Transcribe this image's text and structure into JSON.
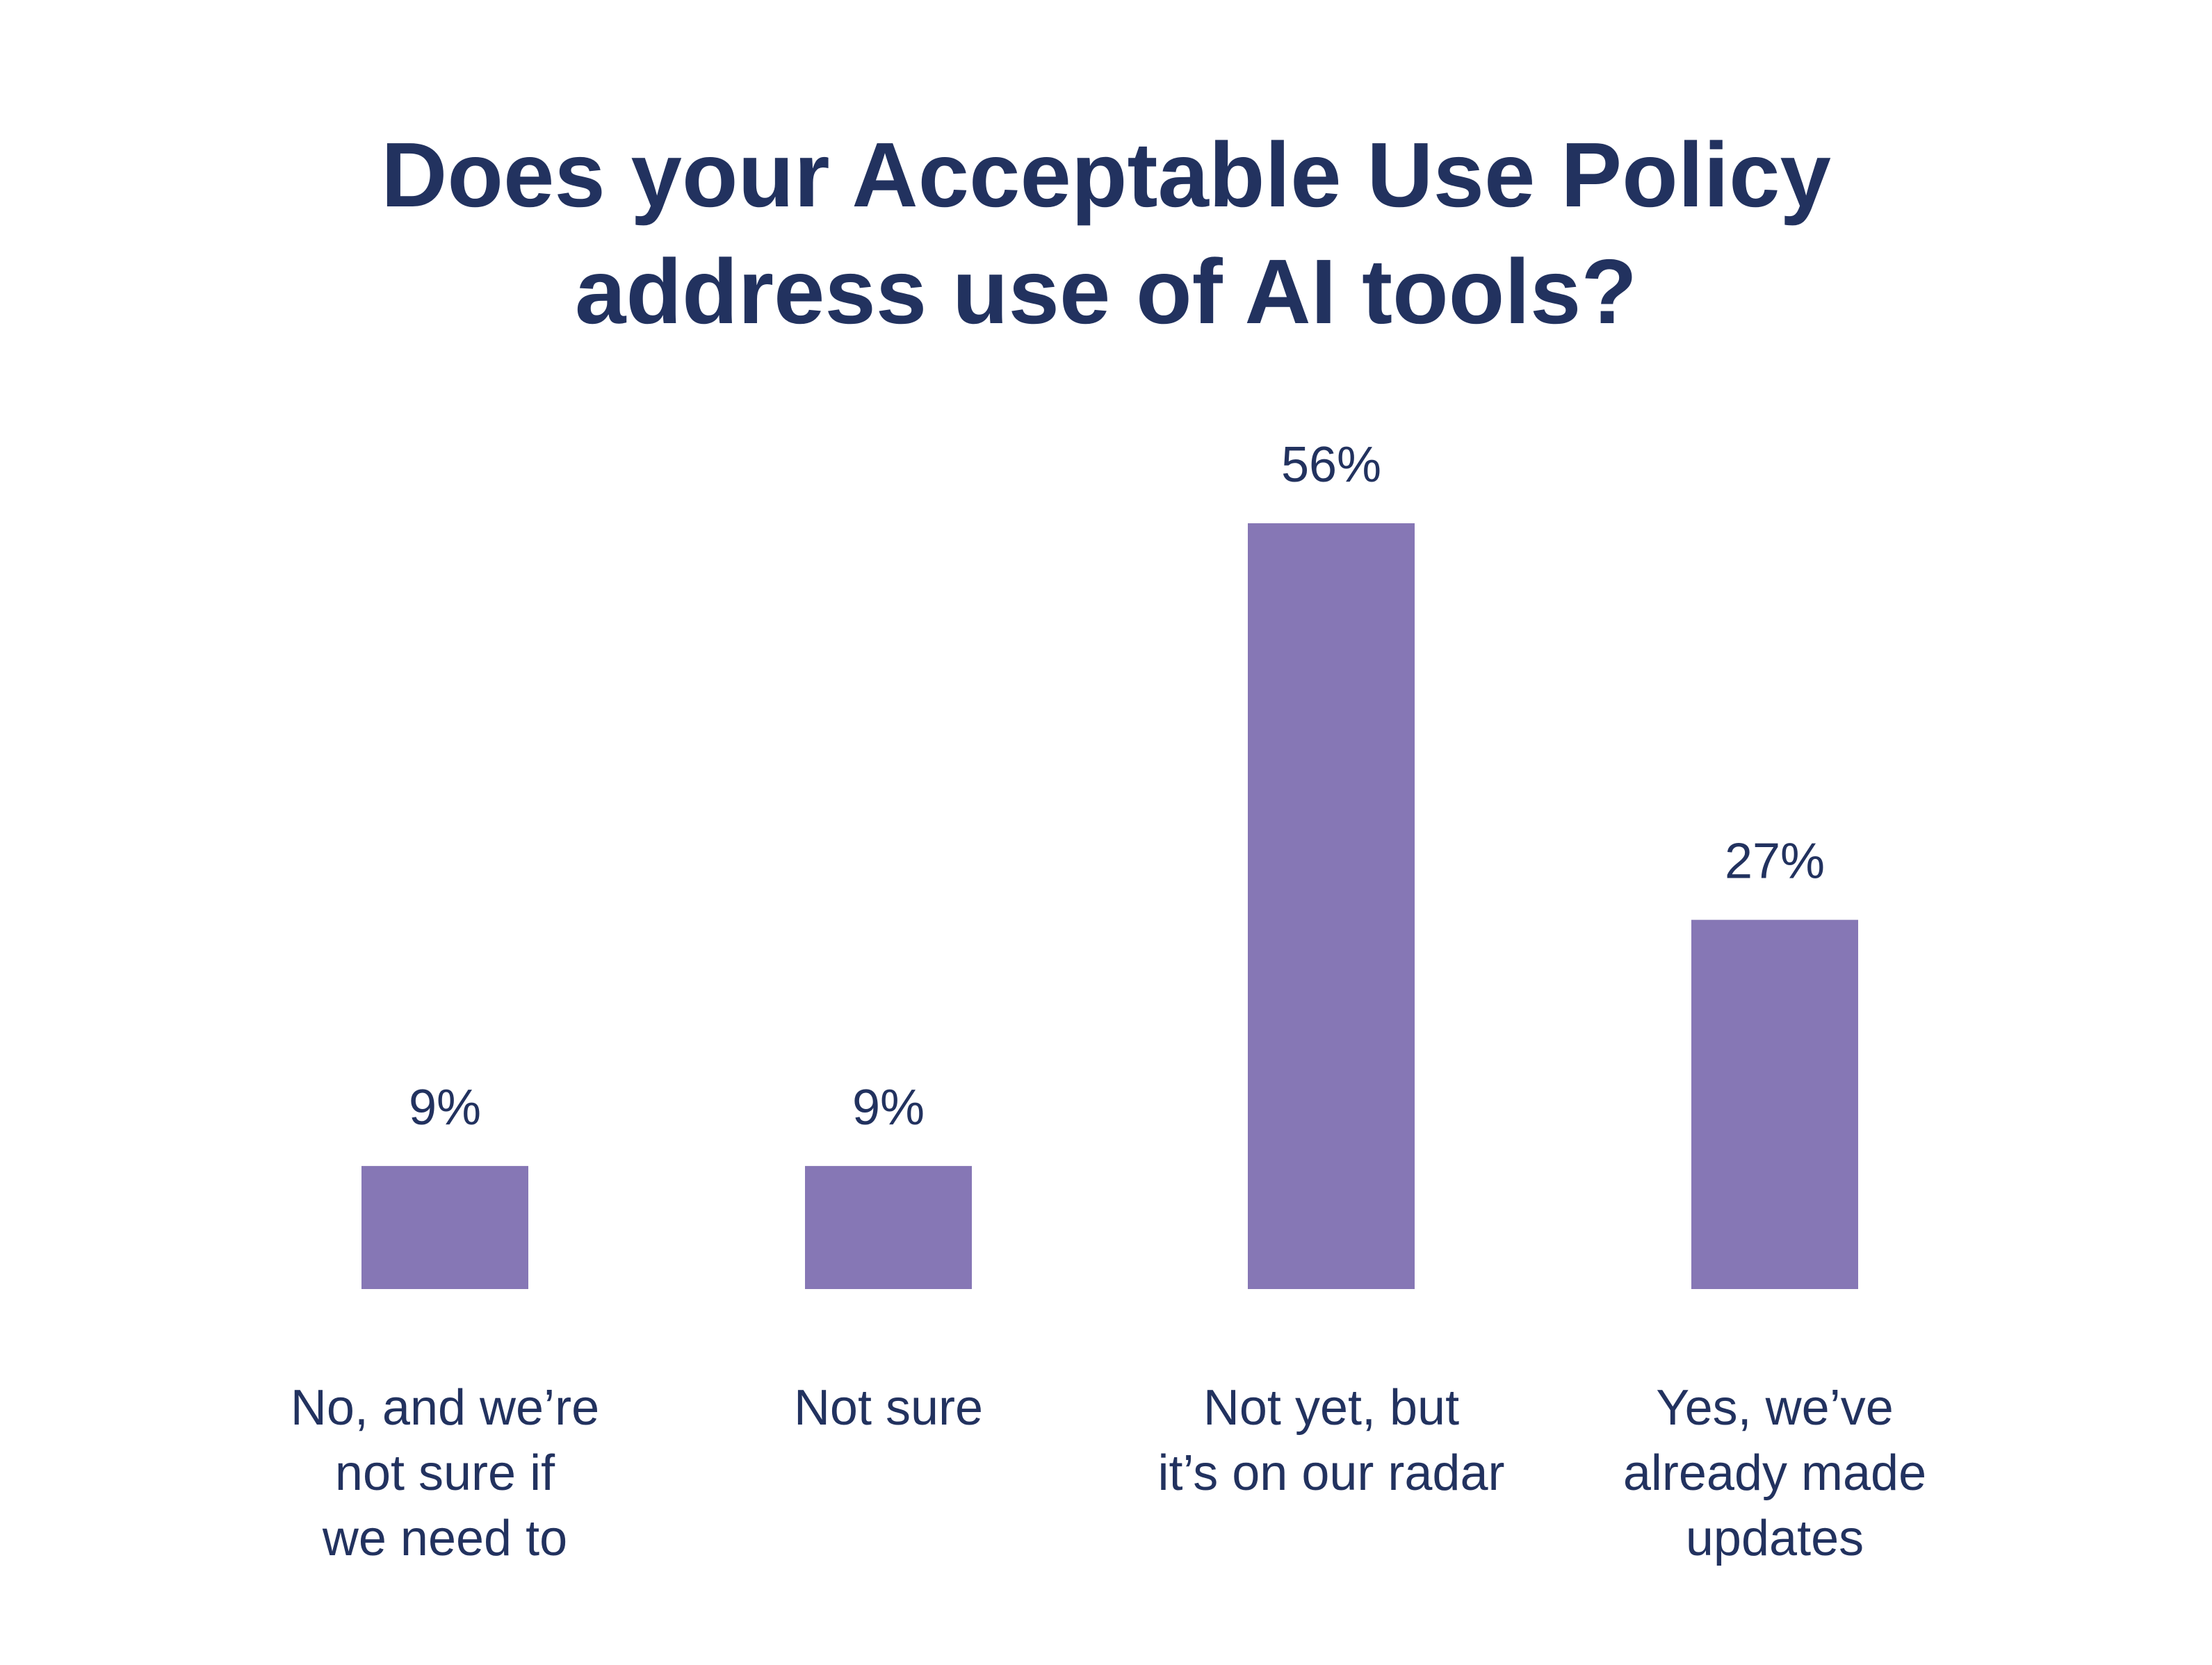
{
  "colors": {
    "title": "#22325f",
    "text": "#22325f",
    "bar": "#8677b5",
    "background": "#ffffff"
  },
  "chart_data": {
    "type": "bar",
    "title_lines": [
      "Does your Acceptable Use Policy",
      "address use of AI tools?"
    ],
    "categories": [
      "No, and we’re not sure if we need to",
      "Not sure",
      "Not yet, but it’s on our radar",
      "Yes, we’ve already made updates"
    ],
    "category_label_lines": [
      [
        "No, and we’re",
        "not sure if",
        "we need to"
      ],
      [
        "Not sure"
      ],
      [
        "Not yet, but",
        "it’s on our radar"
      ],
      [
        "Yes, we’ve",
        "already made",
        "updates"
      ]
    ],
    "values": [
      9,
      9,
      56,
      27
    ],
    "value_labels": [
      "9%",
      "9%",
      "56%",
      "27%"
    ],
    "unit": "%",
    "ylim": [
      0,
      56
    ],
    "grid": false,
    "legend": "none",
    "xlabel": "",
    "ylabel": ""
  }
}
